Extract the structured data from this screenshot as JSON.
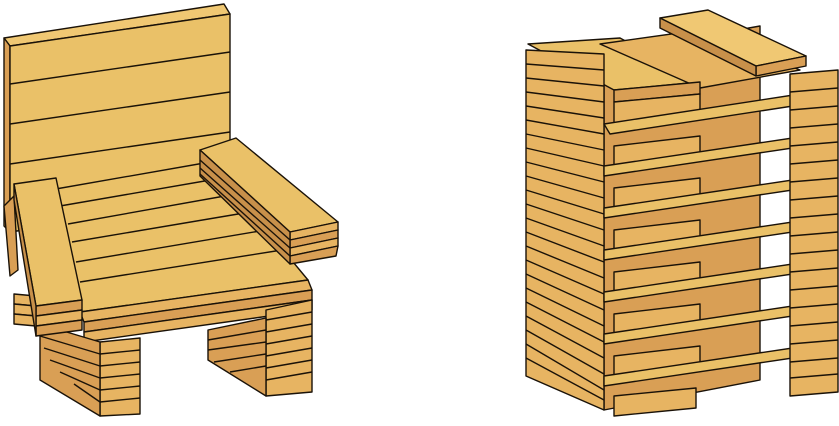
{
  "illustration": {
    "objects": [
      "chair",
      "stacked-tower"
    ],
    "material": "wooden planks",
    "colors": {
      "plank_face": "#eac168",
      "plank_light": "#f0c873",
      "plank_mid": "#e7b462",
      "plank_dark": "#d99f55",
      "plank_shadow": "#c8904a",
      "outline": "#1a1208",
      "background": "#ffffff"
    }
  }
}
